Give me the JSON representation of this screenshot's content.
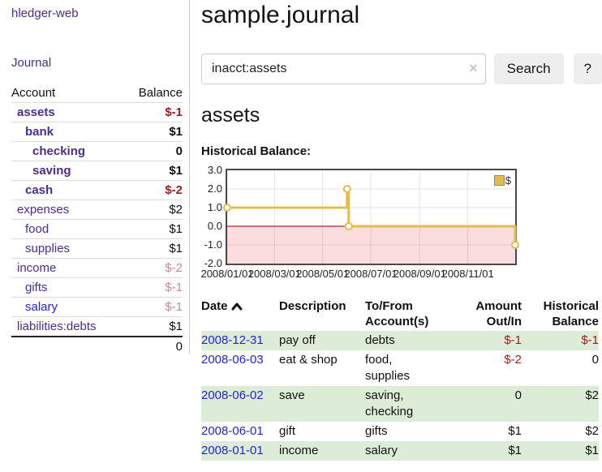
{
  "app": {
    "title": "hledger-web"
  },
  "sidebar": {
    "journal_link": "Journal",
    "accounts_table": {
      "headers": {
        "account": "Account",
        "balance": "Balance"
      },
      "rows": [
        {
          "name": "assets",
          "balance": "$-1"
        },
        {
          "name": "bank",
          "balance": "$1"
        },
        {
          "name": "checking",
          "balance": "0"
        },
        {
          "name": "saving",
          "balance": "$1"
        },
        {
          "name": "cash",
          "balance": "$-2"
        },
        {
          "name": "expenses",
          "balance": "$2"
        },
        {
          "name": "food",
          "balance": "$1"
        },
        {
          "name": "supplies",
          "balance": "$1"
        },
        {
          "name": "income",
          "balance": "$-2"
        },
        {
          "name": "gifts",
          "balance": "$-1"
        },
        {
          "name": "salary",
          "balance": "$-1"
        },
        {
          "name": "liabilities:debts",
          "balance": "$1"
        }
      ],
      "total": "0"
    }
  },
  "main": {
    "title": "sample.journal",
    "search": {
      "value": "inacct:assets",
      "clear_icon": "×",
      "button": "Search",
      "help_button": "?"
    },
    "heading": "assets",
    "chart_label": "Historical Balance:",
    "register_table": {
      "headers": {
        "date": "Date",
        "description": "Description",
        "tofrom": [
          "To/From",
          "Account(s)"
        ],
        "amount": [
          "Amount",
          "Out/In"
        ],
        "historical": [
          "Historical",
          "Balance"
        ]
      },
      "rows": [
        {
          "date": "2008-12-31",
          "description": "pay off",
          "accounts": "debts",
          "amount": "$-1",
          "balance": "$-1"
        },
        {
          "date": "2008-06-03",
          "description": "eat & shop",
          "accounts": "food, supplies",
          "amount": "$-2",
          "balance": "0"
        },
        {
          "date": "2008-06-02",
          "description": "save",
          "accounts": "saving, checking",
          "amount": "0",
          "balance": "$2"
        },
        {
          "date": "2008-06-01",
          "description": "gift",
          "accounts": "gifts",
          "amount": "$1",
          "balance": "$2"
        },
        {
          "date": "2008-01-01",
          "description": "income",
          "accounts": "salary",
          "amount": "$1",
          "balance": "$1"
        }
      ]
    }
  },
  "colors": {
    "purple_link": "#4c2c92",
    "blue_link": "#2323d6",
    "negative_strong": "#9b1c1f",
    "negative_muted": "#c6898c",
    "row_green": "#dcecd7",
    "chart_line": "#e4bc4b",
    "chart_negative_bg": "#fbdddd",
    "zero_line": "#8b0000"
  },
  "chart_data": {
    "type": "line",
    "title": "Historical Balance:",
    "series": [
      {
        "name": "$",
        "color": "#e4bc4b",
        "step": true,
        "points": [
          [
            "2008-01-01",
            1
          ],
          [
            "2008-06-01",
            2
          ],
          [
            "2008-06-03",
            0
          ],
          [
            "2008-12-31",
            -1
          ]
        ]
      }
    ],
    "x_range": [
      "2008-01-01",
      "2008-12-31"
    ],
    "ylim": [
      -2,
      3
    ],
    "y_ticks": [
      {
        "v": 3,
        "label": "3.0"
      },
      {
        "v": 2,
        "label": "2.0"
      },
      {
        "v": 1,
        "label": "1.0"
      },
      {
        "v": 0,
        "label": "0.0"
      },
      {
        "v": -1,
        "label": "-1.0"
      },
      {
        "v": -2,
        "label": "-2.0"
      }
    ],
    "x_ticks": [
      {
        "date": "2008-01-01",
        "label": "2008/01/01"
      },
      {
        "date": "2008-03-01",
        "label": "2008/03/01"
      },
      {
        "date": "2008-05-01",
        "label": "2008/05/01"
      },
      {
        "date": "2008-07-01",
        "label": "2008/07/01"
      },
      {
        "date": "2008-09-01",
        "label": "2008/09/01"
      },
      {
        "date": "2008-11-01",
        "label": "2008/11/01"
      }
    ],
    "grid": true,
    "legend_position": "top-right",
    "negative_region_color": "#fbdddd",
    "zero_line_color": "#8b0000"
  }
}
